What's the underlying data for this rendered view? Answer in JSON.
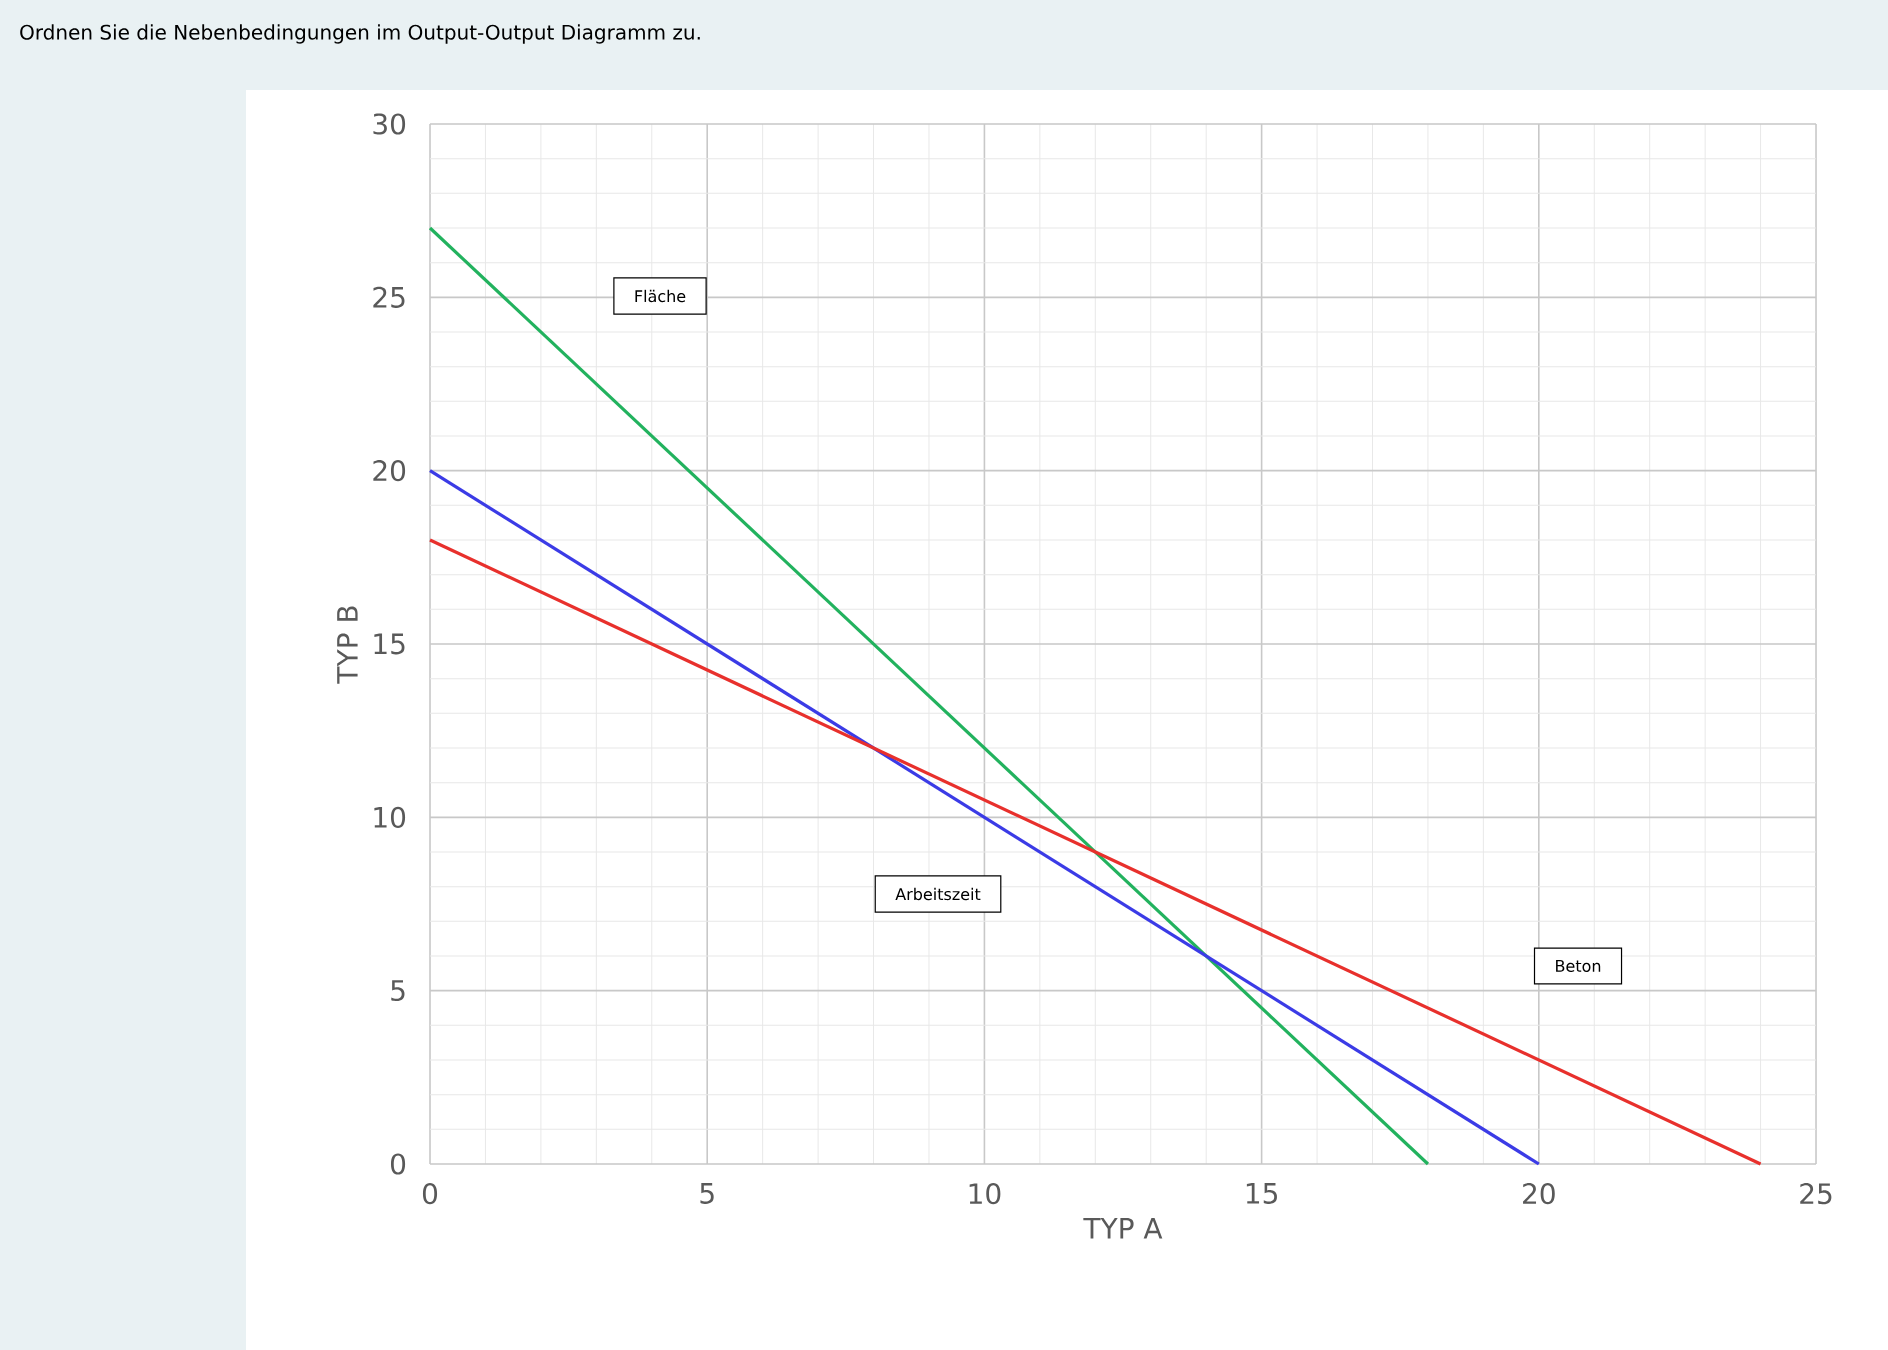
{
  "chart_data": {
    "type": "line",
    "title": "Ordnen Sie die Nebenbedingungen im Output-Output Diagramm zu.",
    "xlabel": "TYP A",
    "ylabel": "TYP B",
    "series": [
      {
        "color": "#22b25e",
        "x": [
          0,
          18
        ],
        "values": [
          27,
          0
        ]
      },
      {
        "color": "#3b3be6",
        "x": [
          0,
          20
        ],
        "values": [
          20,
          0
        ]
      },
      {
        "color": "#e8302c",
        "x": [
          0,
          24
        ],
        "values": [
          18,
          0
        ]
      }
    ],
    "xlim": [
      0,
      25
    ],
    "ylim": [
      0,
      30
    ],
    "xticks": [
      0,
      5,
      10,
      15,
      20,
      25
    ],
    "yticks": [
      0,
      5,
      10,
      15,
      20,
      25,
      30
    ],
    "grid": true,
    "marker": "none",
    "line_style": "solid",
    "annotations": [
      "Fläche",
      "Arbeitszeit",
      "Beton"
    ]
  }
}
